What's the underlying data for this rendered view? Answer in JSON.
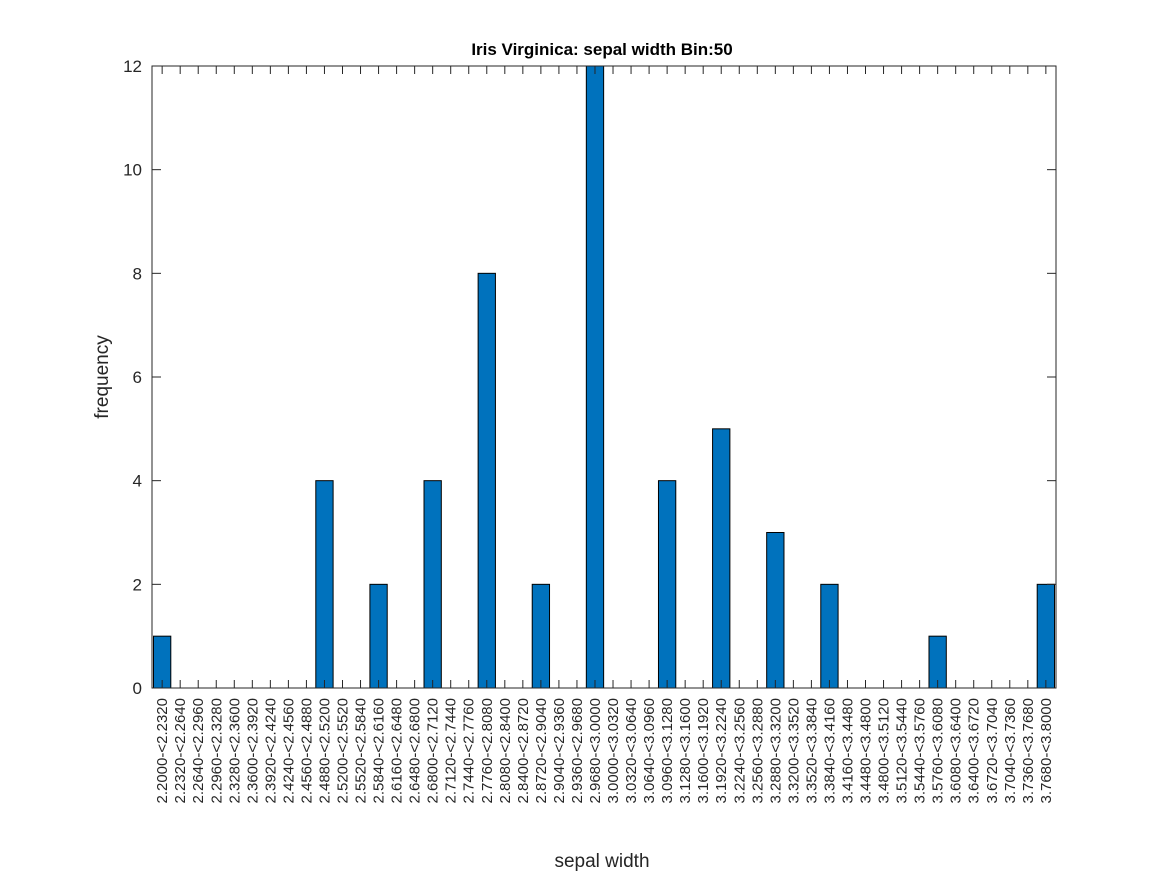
{
  "colors": {
    "bar": "#0072BD",
    "axis": "#262626",
    "background": "#ffffff"
  },
  "chart_data": {
    "type": "bar",
    "title": "Iris Virginica: sepal width Bin:50",
    "xlabel": "sepal width",
    "ylabel": "frequency",
    "ylim": [
      0,
      12
    ],
    "yticks": [
      0,
      2,
      4,
      6,
      8,
      10,
      12
    ],
    "grid": false,
    "legend": "none",
    "categories": [
      "2.2000-<2.2320",
      "2.2320-<2.2640",
      "2.2640-<2.2960",
      "2.2960-<2.3280",
      "2.3280-<2.3600",
      "2.3600-<2.3920",
      "2.3920-<2.4240",
      "2.4240-<2.4560",
      "2.4560-<2.4880",
      "2.4880-<2.5200",
      "2.5200-<2.5520",
      "2.5520-<2.5840",
      "2.5840-<2.6160",
      "2.6160-<2.6480",
      "2.6480-<2.6800",
      "2.6800-<2.7120",
      "2.7120-<2.7440",
      "2.7440-<2.7760",
      "2.7760-<2.8080",
      "2.8080-<2.8400",
      "2.8400-<2.8720",
      "2.8720-<2.9040",
      "2.9040-<2.9360",
      "2.9360-<2.9680",
      "2.9680-<3.0000",
      "3.0000-<3.0320",
      "3.0320-<3.0640",
      "3.0640-<3.0960",
      "3.0960-<3.1280",
      "3.1280-<3.1600",
      "3.1600-<3.1920",
      "3.1920-<3.2240",
      "3.2240-<3.2560",
      "3.2560-<3.2880",
      "3.2880-<3.3200",
      "3.3200-<3.3520",
      "3.3520-<3.3840",
      "3.3840-<3.4160",
      "3.4160-<3.4480",
      "3.4480-<3.4800",
      "3.4800-<3.5120",
      "3.5120-<3.5440",
      "3.5440-<3.5760",
      "3.5760-<3.6080",
      "3.6080-<3.6400",
      "3.6400-<3.6720",
      "3.6720-<3.7040",
      "3.7040-<3.7360",
      "3.7360-<3.7680",
      "3.7680-<3.8000"
    ],
    "values": [
      1,
      0,
      0,
      0,
      0,
      0,
      0,
      0,
      0,
      4,
      0,
      0,
      2,
      0,
      0,
      4,
      0,
      0,
      8,
      0,
      0,
      2,
      0,
      0,
      12,
      0,
      0,
      0,
      4,
      0,
      0,
      5,
      0,
      0,
      3,
      0,
      0,
      2,
      0,
      0,
      0,
      0,
      0,
      1,
      0,
      0,
      0,
      0,
      0,
      2
    ]
  }
}
